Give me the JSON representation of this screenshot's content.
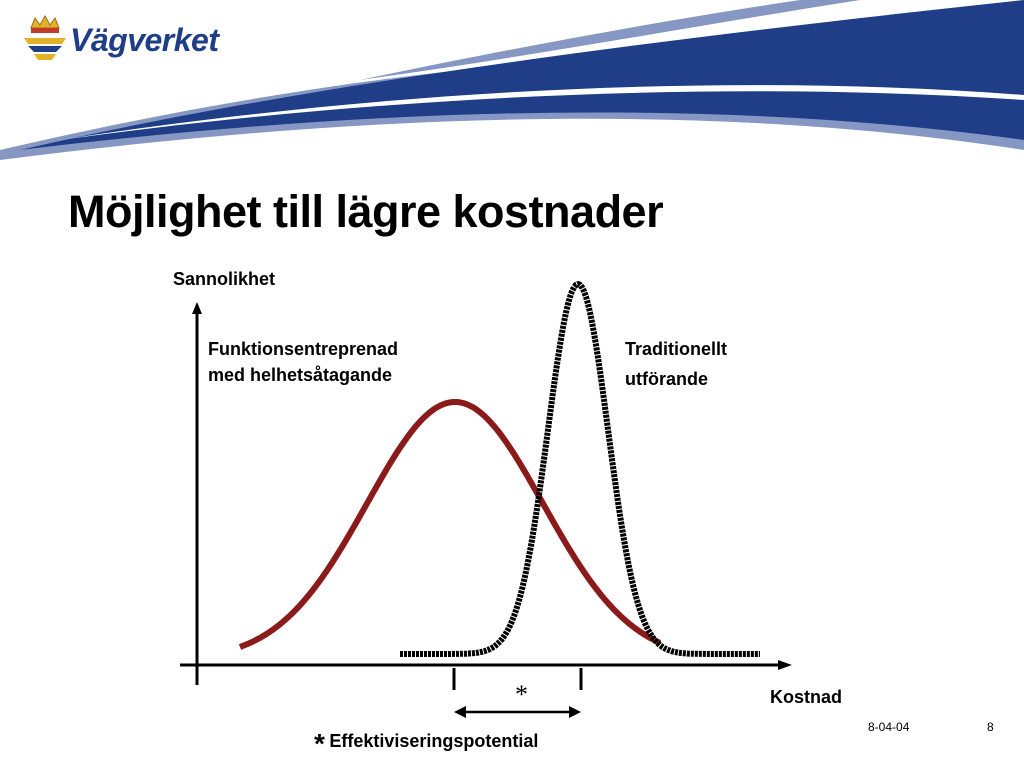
{
  "brand": {
    "name": "Vägverket",
    "colors": {
      "navy": "#1f3e87",
      "light_blue": "#8797c4",
      "curve_red": "#8b1a1a",
      "curve_black": "#000000"
    }
  },
  "slide": {
    "title": "Möjlighet till lägre kostnader",
    "footer_date": "8-04-04",
    "page_number": "8"
  },
  "diagram": {
    "y_axis_label": "Sannolikhet",
    "x_axis_label": "Kostnad",
    "curve_wide": {
      "line1": "Funktionsentreprenad",
      "line2": "med helhetsåtagande",
      "color": "#8b1a1a"
    },
    "curve_narrow": {
      "line1": "Traditionellt",
      "line2": "utförande",
      "color": "#000000"
    },
    "gap_marker": "*",
    "footnote_marker": "*",
    "footnote": "Effektiviseringspotential"
  }
}
